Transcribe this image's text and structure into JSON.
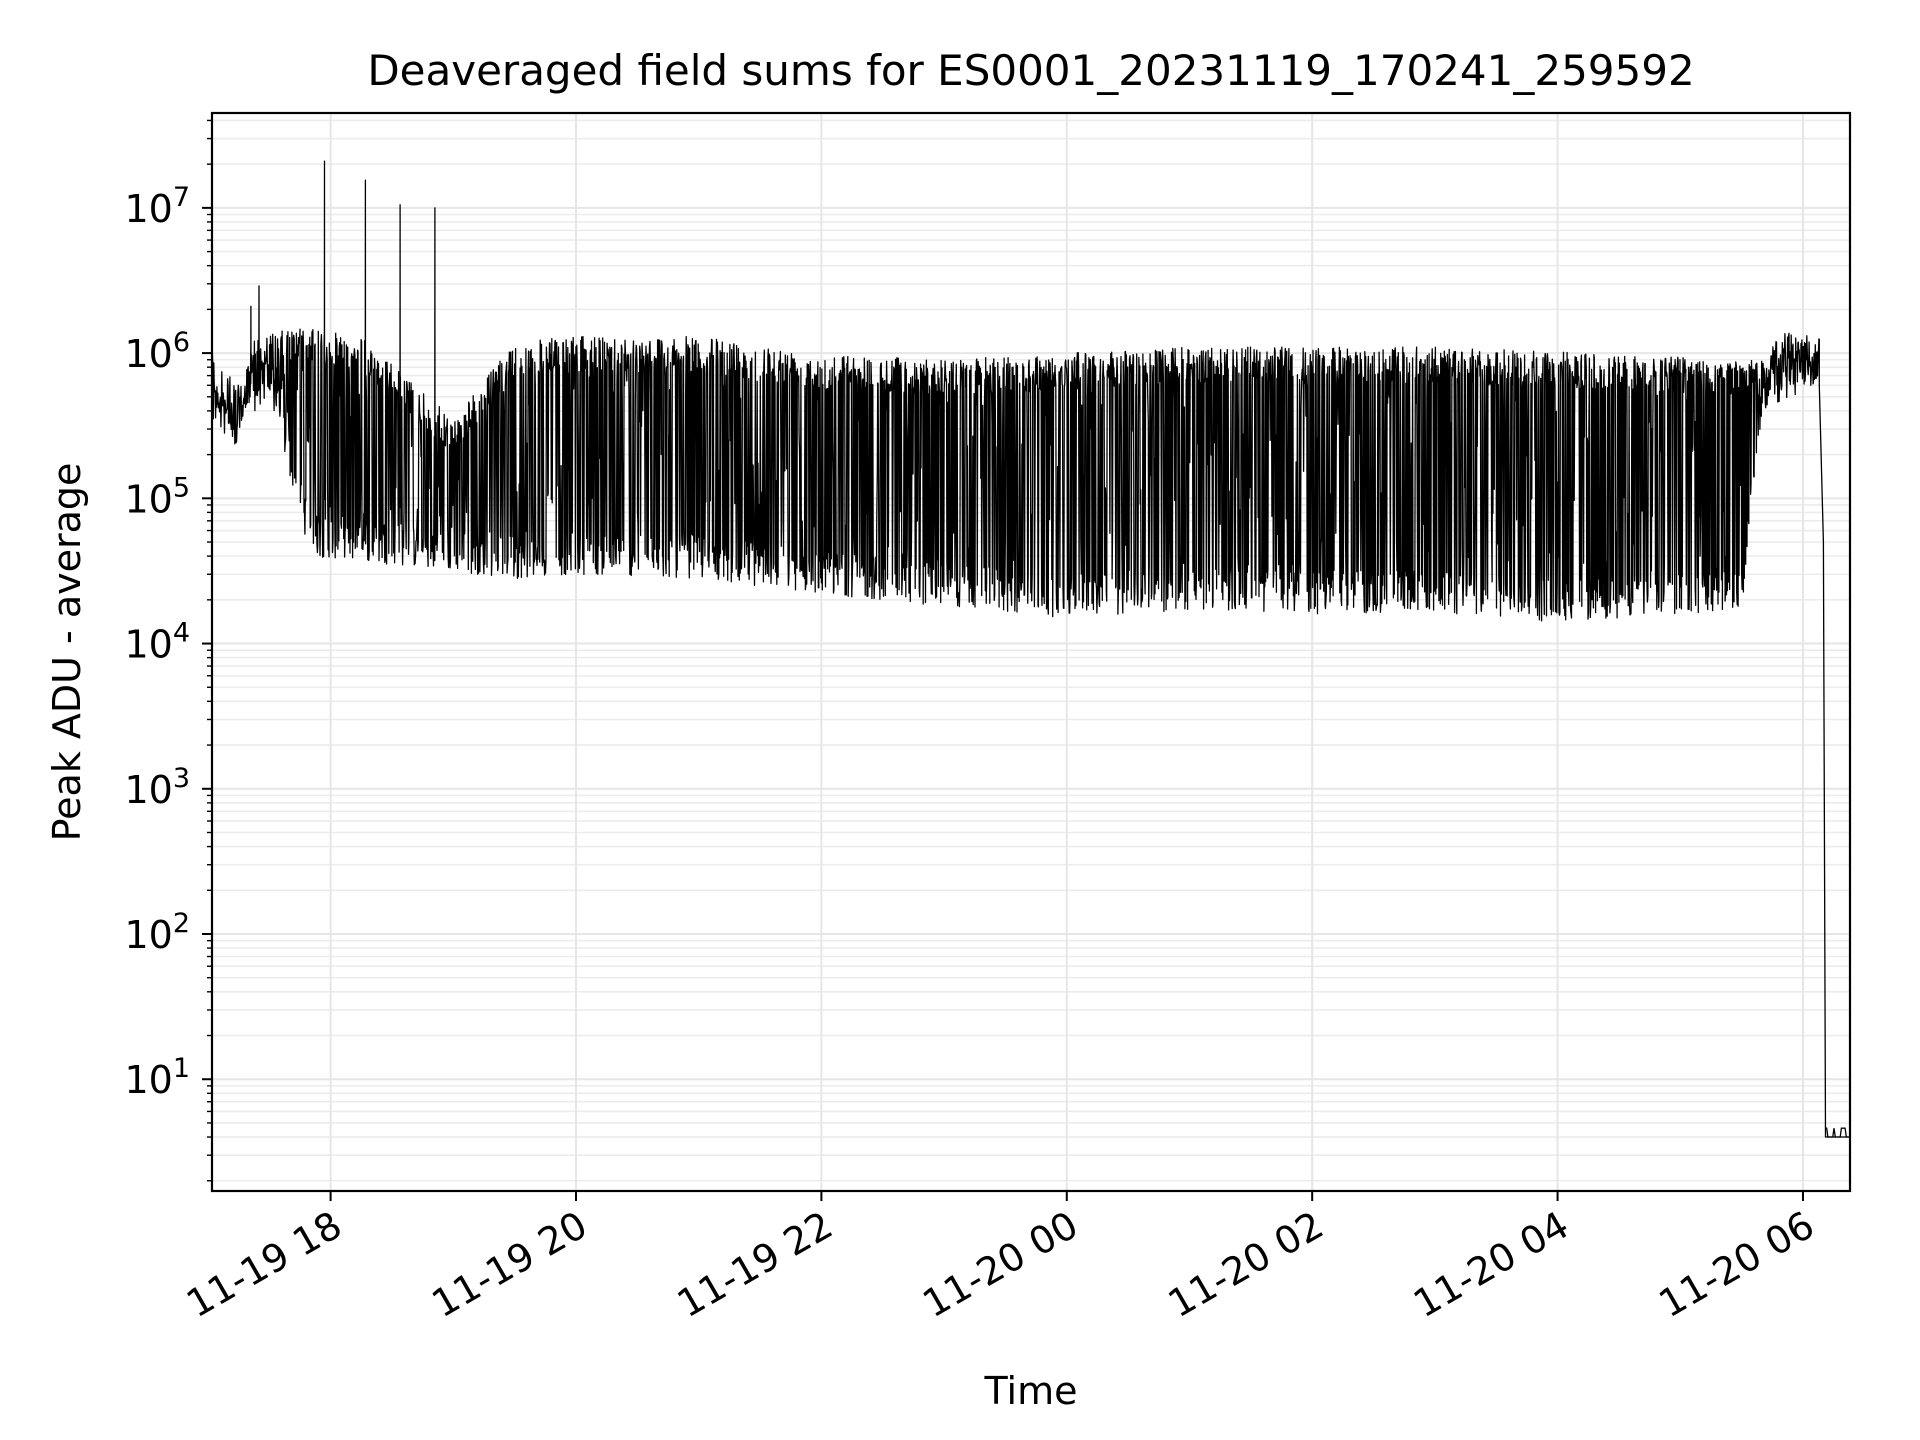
{
  "chart_data": {
    "type": "line",
    "title": "Deaveraged field sums for ES0001_20231119_170241_259592",
    "xlabel": "Time",
    "ylabel": "Peak ADU - average",
    "yscale": "log",
    "xlim": [
      "2023-11-19 17:02",
      "2023-11-20 06:23"
    ],
    "ylim": [
      1.7,
      45000000
    ],
    "grid": "on (major and minor)",
    "line_color": "#000000",
    "x_ticks": [
      "11-19 18",
      "11-19 20",
      "11-19 22",
      "11-20 00",
      "11-20 02",
      "11-20 04",
      "11-20 06"
    ],
    "y_ticks": [
      {
        "base": "10",
        "exp": "1"
      },
      {
        "base": "10",
        "exp": "2"
      },
      {
        "base": "10",
        "exp": "3"
      },
      {
        "base": "10",
        "exp": "4"
      },
      {
        "base": "10",
        "exp": "5"
      },
      {
        "base": "10",
        "exp": "6"
      },
      {
        "base": "10",
        "exp": "7"
      }
    ],
    "series": [
      {
        "envelope_upper": [
          {
            "x": "2023-11-19 17:02",
            "y": 600000
          },
          {
            "x": "2023-11-19 17:15",
            "y": 380000
          },
          {
            "x": "2023-11-19 17:22",
            "y": 1300000
          },
          {
            "x": "2023-11-19 17:45",
            "y": 1500000
          },
          {
            "x": "2023-11-19 18:15",
            "y": 1300000
          },
          {
            "x": "2023-11-19 19:00",
            "y": 350000
          },
          {
            "x": "2023-11-19 19:30",
            "y": 1200000
          },
          {
            "x": "2023-11-19 20:00",
            "y": 1300000
          },
          {
            "x": "2023-11-19 21:00",
            "y": 1300000
          },
          {
            "x": "2023-11-19 22:00",
            "y": 1000000
          },
          {
            "x": "2023-11-19 23:00",
            "y": 900000
          },
          {
            "x": "2023-11-20 00:00",
            "y": 1000000
          },
          {
            "x": "2023-11-20 01:00",
            "y": 1100000
          },
          {
            "x": "2023-11-20 03:00",
            "y": 1100000
          },
          {
            "x": "2023-11-20 05:00",
            "y": 950000
          },
          {
            "x": "2023-11-20 05:40",
            "y": 900000
          },
          {
            "x": "2023-11-20 05:50",
            "y": 1400000
          },
          {
            "x": "2023-11-20 06:07",
            "y": 1300000
          }
        ],
        "envelope_lower": [
          {
            "x": "2023-11-19 17:02",
            "y": 500000
          },
          {
            "x": "2023-11-19 17:15",
            "y": 300000
          },
          {
            "x": "2023-11-19 17:30",
            "y": 500000
          },
          {
            "x": "2023-11-19 17:50",
            "y": 40000
          },
          {
            "x": "2023-11-19 18:30",
            "y": 35000
          },
          {
            "x": "2023-11-19 19:30",
            "y": 28000
          },
          {
            "x": "2023-11-19 20:00",
            "y": 30000
          },
          {
            "x": "2023-11-19 21:00",
            "y": 28000
          },
          {
            "x": "2023-11-19 22:00",
            "y": 22000
          },
          {
            "x": "2023-11-19 23:00",
            "y": 18000
          },
          {
            "x": "2023-11-20 00:00",
            "y": 15000
          },
          {
            "x": "2023-11-20 01:00",
            "y": 17000
          },
          {
            "x": "2023-11-20 02:00",
            "y": 16000
          },
          {
            "x": "2023-11-20 03:00",
            "y": 16000
          },
          {
            "x": "2023-11-20 04:00",
            "y": 14000
          },
          {
            "x": "2023-11-20 05:00",
            "y": 16000
          },
          {
            "x": "2023-11-20 05:30",
            "y": 17000
          },
          {
            "x": "2023-11-20 05:40",
            "y": 400000
          },
          {
            "x": "2023-11-20 06:07",
            "y": 600000
          }
        ],
        "spikes": [
          {
            "x": "2023-11-19 17:57",
            "y": 21000000
          },
          {
            "x": "2023-11-19 18:17",
            "y": 15500000
          },
          {
            "x": "2023-11-19 18:34",
            "y": 10500000
          },
          {
            "x": "2023-11-19 18:51",
            "y": 10000000
          },
          {
            "x": "2023-11-19 17:25",
            "y": 2900000
          },
          {
            "x": "2023-11-19 17:21",
            "y": 2100000
          }
        ],
        "tail": [
          {
            "x": "2023-11-20 06:08",
            "y": 600000
          },
          {
            "x": "2023-11-20 06:10",
            "y": 50000
          },
          {
            "x": "2023-11-20 06:11",
            "y": 4
          },
          {
            "x": "2023-11-20 06:23",
            "y": 4
          }
        ]
      }
    ]
  }
}
